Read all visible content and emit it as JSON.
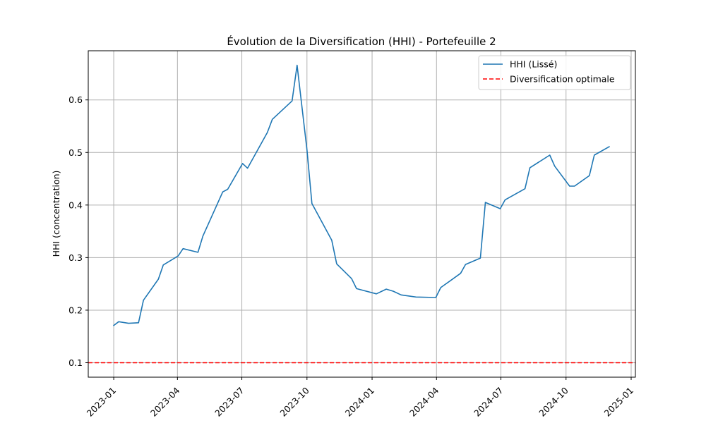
{
  "chart_data": {
    "type": "line",
    "title": "Évolution de la Diversification (HHI) - Portefeuille 2",
    "xlabel": "",
    "ylabel": "HHI (concentration)",
    "xlim": [
      "2022-11-26",
      "2025-01-07"
    ],
    "ylim": [
      0.0725,
      0.6935
    ],
    "yticks": [
      0.1,
      0.2,
      0.3,
      0.4,
      0.5,
      0.6
    ],
    "ytick_labels": [
      "0.1",
      "0.2",
      "0.3",
      "0.4",
      "0.5",
      "0.6"
    ],
    "xticks": [
      "2023-01-01",
      "2023-04-01",
      "2023-07-01",
      "2023-10-01",
      "2024-01-01",
      "2024-04-01",
      "2024-07-01",
      "2024-10-01",
      "2025-01-01"
    ],
    "xtick_labels": [
      "2023-01",
      "2023-04",
      "2023-07",
      "2023-10",
      "2024-01",
      "2024-04",
      "2024-07",
      "2024-10",
      "2025-01"
    ],
    "grid": true,
    "legend_position": "upper right",
    "series": [
      {
        "name": "HHI (Lissé)",
        "color": "#1f77b4",
        "style": "solid",
        "x": [
          "2023-01-01",
          "2023-01-08",
          "2023-01-22",
          "2023-02-05",
          "2023-02-12",
          "2023-03-05",
          "2023-03-12",
          "2023-04-02",
          "2023-04-09",
          "2023-04-30",
          "2023-05-07",
          "2023-06-04",
          "2023-06-11",
          "2023-07-02",
          "2023-07-09",
          "2023-08-06",
          "2023-08-13",
          "2023-09-10",
          "2023-09-17",
          "2023-10-01",
          "2023-10-08",
          "2023-11-05",
          "2023-11-12",
          "2023-12-03",
          "2023-12-10",
          "2024-01-07",
          "2024-01-21",
          "2024-01-31",
          "2024-02-11",
          "2024-03-03",
          "2024-03-31",
          "2024-04-07",
          "2024-05-05",
          "2024-05-12",
          "2024-06-02",
          "2024-06-09",
          "2024-06-30",
          "2024-07-07",
          "2024-08-04",
          "2024-08-11",
          "2024-09-08",
          "2024-09-15",
          "2024-10-06",
          "2024-10-13",
          "2024-11-03",
          "2024-11-10",
          "2024-12-01"
        ],
        "y": [
          0.171,
          0.178,
          0.175,
          0.176,
          0.219,
          0.259,
          0.286,
          0.303,
          0.317,
          0.31,
          0.341,
          0.425,
          0.43,
          0.479,
          0.47,
          0.538,
          0.563,
          0.598,
          0.666,
          0.505,
          0.403,
          0.333,
          0.288,
          0.26,
          0.241,
          0.231,
          0.24,
          0.236,
          0.229,
          0.225,
          0.224,
          0.243,
          0.27,
          0.287,
          0.299,
          0.405,
          0.393,
          0.41,
          0.431,
          0.471,
          0.495,
          0.474,
          0.436,
          0.436,
          0.456,
          0.495,
          0.511
        ]
      },
      {
        "name": "Diversification optimale",
        "color": "#ff0000",
        "style": "dashed",
        "y_constant": 0.1
      }
    ]
  }
}
